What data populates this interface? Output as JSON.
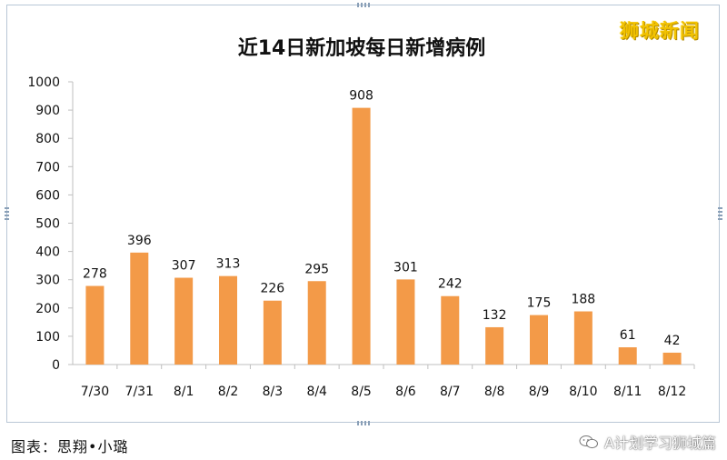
{
  "brand": {
    "text": "狮城新闻"
  },
  "footer": {
    "credit": "图表：思翔•小璐",
    "account": "A计划学习狮城篇"
  },
  "icons": {
    "account_icon": "wechat-icon"
  },
  "colors": {
    "bar": "#f39a48",
    "axis": "#bfbfbf",
    "text": "#111111"
  },
  "chart_data": {
    "type": "bar",
    "title": "近14日新加坡每日新增病例",
    "categories": [
      "7/30",
      "7/31",
      "8/1",
      "8/2",
      "8/3",
      "8/4",
      "8/5",
      "8/6",
      "8/7",
      "8/8",
      "8/9",
      "8/10",
      "8/11",
      "8/12"
    ],
    "values": [
      278,
      396,
      307,
      313,
      226,
      295,
      908,
      301,
      242,
      132,
      175,
      188,
      61,
      42
    ],
    "ylim": [
      0,
      1000
    ],
    "yticks": [
      0,
      100,
      200,
      300,
      400,
      500,
      600,
      700,
      800,
      900,
      1000
    ],
    "grid": false,
    "data_labels": true
  }
}
